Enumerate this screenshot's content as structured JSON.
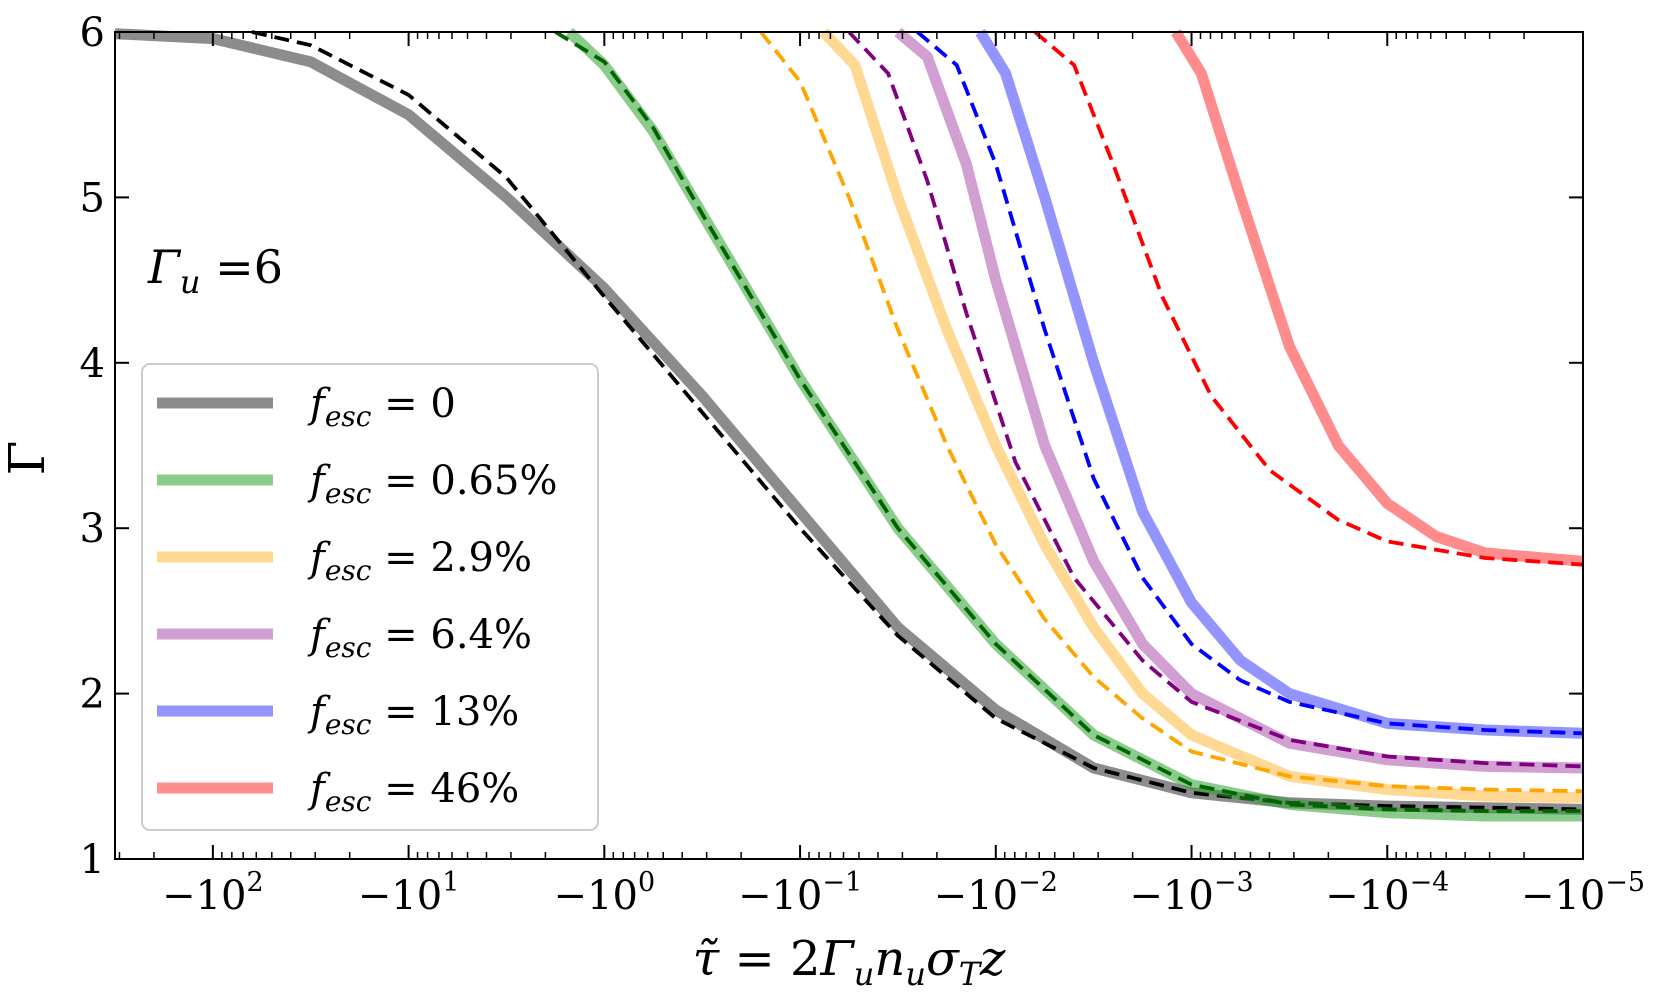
{
  "chart_data": {
    "type": "line",
    "ylabel": "Γ",
    "xlabel": "τ̃ = 2Γ_u n_u σ_T z",
    "annotation": "Γ_u =6",
    "ylim": [
      1,
      6
    ],
    "yticks": [
      1,
      2,
      3,
      4,
      5,
      6
    ],
    "xscale": "symlog-negative",
    "xlim_decades": [
      2.5,
      -5
    ],
    "xticks": [
      {
        "decade": 2,
        "base": "−10",
        "exp": "2"
      },
      {
        "decade": 1,
        "base": "−10",
        "exp": "1"
      },
      {
        "decade": 0,
        "base": "−10",
        "exp": "0"
      },
      {
        "decade": -1,
        "base": "−10",
        "exp": "−1"
      },
      {
        "decade": -2,
        "base": "−10",
        "exp": "−2"
      },
      {
        "decade": -3,
        "base": "−10",
        "exp": "−3"
      },
      {
        "decade": -4,
        "base": "−10",
        "exp": "−4"
      },
      {
        "decade": -5,
        "base": "−10",
        "exp": "−5"
      }
    ],
    "series": [
      {
        "name": "f_esc = 0",
        "legend_main": "f",
        "legend_sub": "esc",
        "legend_value": " = 0",
        "color": "#808080",
        "alpha": 0.9,
        "solid": [
          [
            2.5,
            5.99
          ],
          [
            2.0,
            5.96
          ],
          [
            1.5,
            5.82
          ],
          [
            1.0,
            5.5
          ],
          [
            0.5,
            5.0
          ],
          [
            0.0,
            4.45
          ],
          [
            -0.5,
            3.8
          ],
          [
            -1.0,
            3.1
          ],
          [
            -1.5,
            2.4
          ],
          [
            -2.0,
            1.9
          ],
          [
            -2.5,
            1.55
          ],
          [
            -3.0,
            1.4
          ],
          [
            -3.5,
            1.34
          ],
          [
            -4.0,
            1.32
          ],
          [
            -4.5,
            1.31
          ],
          [
            -5.0,
            1.3
          ]
        ],
        "dashed": [
          [
            1.8,
            6.0
          ],
          [
            1.5,
            5.92
          ],
          [
            1.0,
            5.62
          ],
          [
            0.5,
            5.12
          ],
          [
            0.0,
            4.4
          ],
          [
            -0.5,
            3.7
          ],
          [
            -1.0,
            3.0
          ],
          [
            -1.5,
            2.35
          ],
          [
            -2.0,
            1.85
          ],
          [
            -2.5,
            1.55
          ],
          [
            -3.0,
            1.4
          ],
          [
            -3.5,
            1.34
          ],
          [
            -4.0,
            1.32
          ],
          [
            -4.5,
            1.31
          ],
          [
            -5.0,
            1.3
          ]
        ]
      },
      {
        "name": "f_esc = 0.65%",
        "legend_main": "f",
        "legend_sub": "esc",
        "legend_value": " = 0.65%",
        "color": "#2ca02c",
        "dash_color": "#006400",
        "alpha": 0.55,
        "solid": [
          [
            0.18,
            6.0
          ],
          [
            0.0,
            5.8
          ],
          [
            -0.25,
            5.4
          ],
          [
            -0.5,
            4.9
          ],
          [
            -1.0,
            3.9
          ],
          [
            -1.5,
            3.0
          ],
          [
            -2.0,
            2.3
          ],
          [
            -2.5,
            1.75
          ],
          [
            -3.0,
            1.45
          ],
          [
            -3.5,
            1.33
          ],
          [
            -4.0,
            1.28
          ],
          [
            -4.5,
            1.26
          ],
          [
            -5.0,
            1.26
          ]
        ],
        "dashed": [
          [
            0.25,
            6.0
          ],
          [
            0.0,
            5.82
          ],
          [
            -0.25,
            5.42
          ],
          [
            -0.5,
            4.9
          ],
          [
            -1.0,
            3.9
          ],
          [
            -1.5,
            3.0
          ],
          [
            -2.0,
            2.3
          ],
          [
            -2.5,
            1.75
          ],
          [
            -3.0,
            1.45
          ],
          [
            -3.5,
            1.33
          ],
          [
            -4.0,
            1.3
          ],
          [
            -4.5,
            1.29
          ],
          [
            -5.0,
            1.29
          ]
        ]
      },
      {
        "name": "f_esc = 2.9%",
        "legend_main": "f",
        "legend_sub": "esc",
        "legend_value": " = 2.9%",
        "color": "#ffc04d",
        "dash_color": "#ffa500",
        "alpha": 0.6,
        "solid": [
          [
            -1.12,
            6.0
          ],
          [
            -1.28,
            5.8
          ],
          [
            -1.5,
            5.0
          ],
          [
            -1.75,
            4.2
          ],
          [
            -2.0,
            3.5
          ],
          [
            -2.25,
            2.9
          ],
          [
            -2.5,
            2.4
          ],
          [
            -2.75,
            2.0
          ],
          [
            -3.0,
            1.75
          ],
          [
            -3.5,
            1.5
          ],
          [
            -4.0,
            1.42
          ],
          [
            -4.5,
            1.38
          ],
          [
            -5.0,
            1.37
          ]
        ],
        "dashed": [
          [
            -0.8,
            6.0
          ],
          [
            -1.0,
            5.7
          ],
          [
            -1.25,
            5.0
          ],
          [
            -1.5,
            4.2
          ],
          [
            -1.75,
            3.5
          ],
          [
            -2.0,
            2.9
          ],
          [
            -2.25,
            2.45
          ],
          [
            -2.5,
            2.1
          ],
          [
            -2.75,
            1.85
          ],
          [
            -3.0,
            1.65
          ],
          [
            -3.5,
            1.5
          ],
          [
            -4.0,
            1.44
          ],
          [
            -4.5,
            1.42
          ],
          [
            -5.0,
            1.41
          ]
        ]
      },
      {
        "name": "f_esc = 6.4%",
        "legend_main": "f",
        "legend_sub": "esc",
        "legend_value": " = 6.4%",
        "color": "#b45fb4",
        "dash_color": "#800080",
        "alpha": 0.6,
        "solid": [
          [
            -1.5,
            6.0
          ],
          [
            -1.65,
            5.85
          ],
          [
            -1.85,
            5.2
          ],
          [
            -2.0,
            4.5
          ],
          [
            -2.25,
            3.5
          ],
          [
            -2.5,
            2.8
          ],
          [
            -2.75,
            2.3
          ],
          [
            -3.0,
            2.0
          ],
          [
            -3.5,
            1.7
          ],
          [
            -4.0,
            1.6
          ],
          [
            -4.5,
            1.56
          ],
          [
            -5.0,
            1.55
          ]
        ],
        "dashed": [
          [
            -1.25,
            6.0
          ],
          [
            -1.45,
            5.75
          ],
          [
            -1.65,
            5.1
          ],
          [
            -1.85,
            4.3
          ],
          [
            -2.1,
            3.4
          ],
          [
            -2.4,
            2.7
          ],
          [
            -2.75,
            2.2
          ],
          [
            -3.0,
            1.95
          ],
          [
            -3.5,
            1.72
          ],
          [
            -4.0,
            1.62
          ],
          [
            -4.5,
            1.58
          ],
          [
            -5.0,
            1.56
          ]
        ]
      },
      {
        "name": "f_esc = 13%",
        "legend_main": "f",
        "legend_sub": "esc",
        "legend_value": " = 13%",
        "color": "#5a5aff",
        "dash_color": "#0000ff",
        "alpha": 0.65,
        "solid": [
          [
            -1.92,
            6.0
          ],
          [
            -2.05,
            5.75
          ],
          [
            -2.25,
            5.0
          ],
          [
            -2.5,
            4.0
          ],
          [
            -2.75,
            3.1
          ],
          [
            -3.0,
            2.55
          ],
          [
            -3.25,
            2.2
          ],
          [
            -3.5,
            2.0
          ],
          [
            -4.0,
            1.82
          ],
          [
            -4.5,
            1.78
          ],
          [
            -5.0,
            1.76
          ]
        ],
        "dashed": [
          [
            -1.6,
            6.0
          ],
          [
            -1.8,
            5.8
          ],
          [
            -2.0,
            5.2
          ],
          [
            -2.25,
            4.2
          ],
          [
            -2.5,
            3.3
          ],
          [
            -2.75,
            2.7
          ],
          [
            -3.0,
            2.3
          ],
          [
            -3.25,
            2.08
          ],
          [
            -3.5,
            1.95
          ],
          [
            -4.0,
            1.82
          ],
          [
            -4.5,
            1.78
          ],
          [
            -5.0,
            1.76
          ]
        ]
      },
      {
        "name": "f_esc = 46%",
        "legend_main": "f",
        "legend_sub": "esc",
        "legend_value": " = 46%",
        "color": "#ff6666",
        "dash_color": "#ff0000",
        "alpha": 0.75,
        "solid": [
          [
            -2.92,
            6.0
          ],
          [
            -3.05,
            5.75
          ],
          [
            -3.25,
            5.0
          ],
          [
            -3.5,
            4.1
          ],
          [
            -3.75,
            3.5
          ],
          [
            -4.0,
            3.15
          ],
          [
            -4.25,
            2.95
          ],
          [
            -4.5,
            2.85
          ],
          [
            -5.0,
            2.8
          ]
        ],
        "dashed": [
          [
            -2.2,
            6.0
          ],
          [
            -2.4,
            5.8
          ],
          [
            -2.6,
            5.2
          ],
          [
            -2.85,
            4.4
          ],
          [
            -3.1,
            3.8
          ],
          [
            -3.4,
            3.35
          ],
          [
            -3.75,
            3.05
          ],
          [
            -4.0,
            2.92
          ],
          [
            -4.5,
            2.82
          ],
          [
            -5.0,
            2.78
          ]
        ]
      }
    ]
  }
}
